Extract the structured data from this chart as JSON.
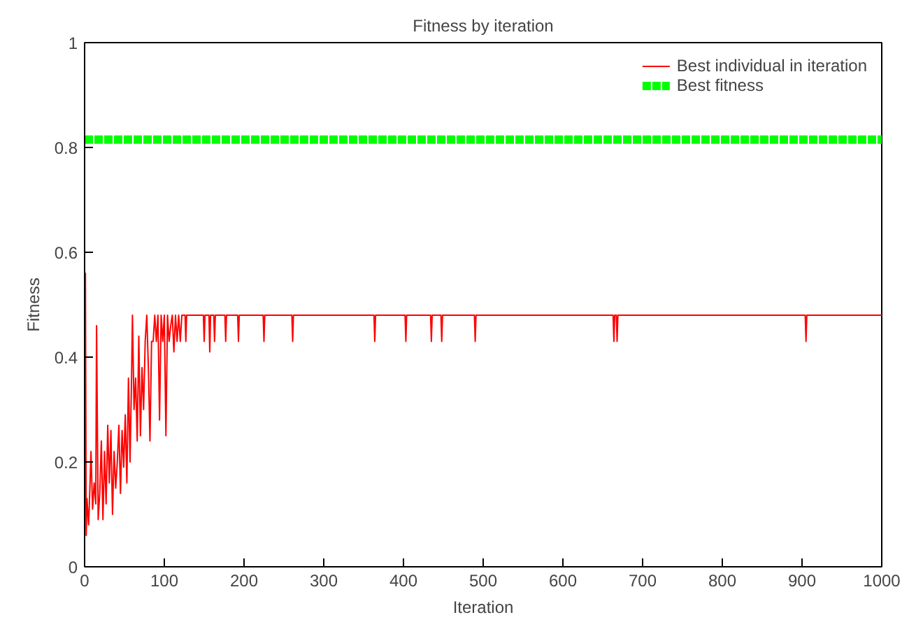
{
  "chart_data": {
    "type": "line",
    "title": "Fitness by iteration",
    "xlabel": "Iteration",
    "ylabel": "Fitness",
    "xlim": [
      0,
      1000
    ],
    "ylim": [
      0,
      1
    ],
    "xticks": [
      0,
      100,
      200,
      300,
      400,
      500,
      600,
      700,
      800,
      900,
      1000
    ],
    "yticks": [
      0,
      0.2,
      0.4,
      0.6,
      0.8,
      1
    ],
    "grid": false,
    "legend": "top right",
    "series": [
      {
        "name": "Best individual in iteration",
        "color": "#ff0000",
        "line_style": "solid",
        "x": [
          0,
          1,
          2,
          3,
          5,
          6,
          8,
          10,
          12,
          14,
          15,
          17,
          19,
          21,
          23,
          25,
          27,
          29,
          31,
          33,
          35,
          37,
          39,
          41,
          43,
          45,
          47,
          49,
          51,
          53,
          55,
          57,
          59,
          60,
          62,
          64,
          66,
          68,
          70,
          72,
          74,
          76,
          78,
          80,
          82,
          84,
          86,
          88,
          90,
          92,
          94,
          96,
          98,
          100,
          102,
          104,
          106,
          108,
          110,
          112,
          114,
          116,
          118,
          120,
          122,
          126,
          127,
          128,
          149,
          150,
          151,
          156,
          157,
          158,
          162,
          163,
          164,
          176,
          177,
          178,
          192,
          193,
          194,
          224,
          225,
          226,
          260,
          261,
          262,
          363,
          364,
          365,
          402,
          403,
          404,
          434,
          435,
          436,
          447,
          448,
          449,
          489,
          490,
          491,
          663,
          664,
          665,
          667,
          668,
          669,
          904,
          905,
          906,
          1000
        ],
        "values": [
          0.06,
          0.56,
          0.06,
          0.13,
          0.08,
          0.12,
          0.22,
          0.11,
          0.16,
          0.12,
          0.46,
          0.09,
          0.14,
          0.24,
          0.09,
          0.22,
          0.12,
          0.27,
          0.16,
          0.26,
          0.1,
          0.22,
          0.15,
          0.2,
          0.27,
          0.14,
          0.26,
          0.19,
          0.29,
          0.16,
          0.36,
          0.2,
          0.37,
          0.48,
          0.3,
          0.36,
          0.24,
          0.44,
          0.25,
          0.38,
          0.3,
          0.43,
          0.48,
          0.38,
          0.24,
          0.43,
          0.43,
          0.48,
          0.43,
          0.48,
          0.28,
          0.48,
          0.43,
          0.48,
          0.25,
          0.48,
          0.43,
          0.46,
          0.48,
          0.41,
          0.48,
          0.43,
          0.48,
          0.43,
          0.48,
          0.48,
          0.43,
          0.48,
          0.48,
          0.43,
          0.48,
          0.48,
          0.41,
          0.48,
          0.48,
          0.43,
          0.48,
          0.48,
          0.43,
          0.48,
          0.48,
          0.43,
          0.48,
          0.48,
          0.43,
          0.48,
          0.48,
          0.43,
          0.48,
          0.48,
          0.43,
          0.48,
          0.48,
          0.43,
          0.48,
          0.48,
          0.43,
          0.48,
          0.48,
          0.43,
          0.48,
          0.48,
          0.43,
          0.48,
          0.48,
          0.43,
          0.48,
          0.48,
          0.43,
          0.48,
          0.48,
          0.43,
          0.48,
          0.48
        ]
      },
      {
        "name": "Best fitness",
        "color": "#00ff00",
        "line_style": "dashed",
        "x": [
          0,
          10,
          20,
          30,
          40,
          50,
          60,
          70,
          80,
          90,
          100,
          110,
          120,
          130,
          140,
          150,
          160,
          170,
          180,
          190,
          200,
          210,
          220,
          230,
          240,
          250,
          260,
          270,
          280,
          290,
          300,
          310,
          320,
          330,
          340,
          350,
          360,
          370,
          380,
          390,
          400,
          410,
          420,
          430,
          440,
          450,
          460,
          470,
          480,
          490,
          500,
          510,
          520,
          530,
          540,
          550,
          560,
          570,
          580,
          590,
          600,
          610,
          620,
          630,
          640,
          650,
          660,
          670,
          680,
          690,
          700,
          710,
          720,
          730,
          740,
          750,
          760,
          770,
          780,
          790,
          800,
          810,
          820,
          830,
          840,
          850,
          860,
          870,
          880,
          890,
          900,
          910,
          920,
          930,
          940,
          950,
          960,
          970,
          980,
          990,
          1000
        ],
        "values": [
          0.815,
          0.815,
          0.815,
          0.815,
          0.815,
          0.815,
          0.815,
          0.815,
          0.815,
          0.815,
          0.815,
          0.815,
          0.815,
          0.815,
          0.815,
          0.815,
          0.815,
          0.815,
          0.815,
          0.815,
          0.815,
          0.815,
          0.815,
          0.815,
          0.815,
          0.815,
          0.815,
          0.815,
          0.815,
          0.815,
          0.815,
          0.815,
          0.815,
          0.815,
          0.815,
          0.815,
          0.815,
          0.815,
          0.815,
          0.815,
          0.815,
          0.815,
          0.815,
          0.815,
          0.815,
          0.815,
          0.815,
          0.815,
          0.815,
          0.815,
          0.815,
          0.815,
          0.815,
          0.815,
          0.815,
          0.815,
          0.815,
          0.815,
          0.815,
          0.815,
          0.815,
          0.815,
          0.815,
          0.815,
          0.815,
          0.815,
          0.815,
          0.815,
          0.815,
          0.815,
          0.815,
          0.815,
          0.815,
          0.815,
          0.815,
          0.815,
          0.815,
          0.815,
          0.815,
          0.815,
          0.815,
          0.815,
          0.815,
          0.815,
          0.815,
          0.815,
          0.815,
          0.815,
          0.815,
          0.815,
          0.815,
          0.815,
          0.815,
          0.815,
          0.815,
          0.815,
          0.815,
          0.815,
          0.815,
          0.815,
          0.815
        ]
      }
    ]
  }
}
